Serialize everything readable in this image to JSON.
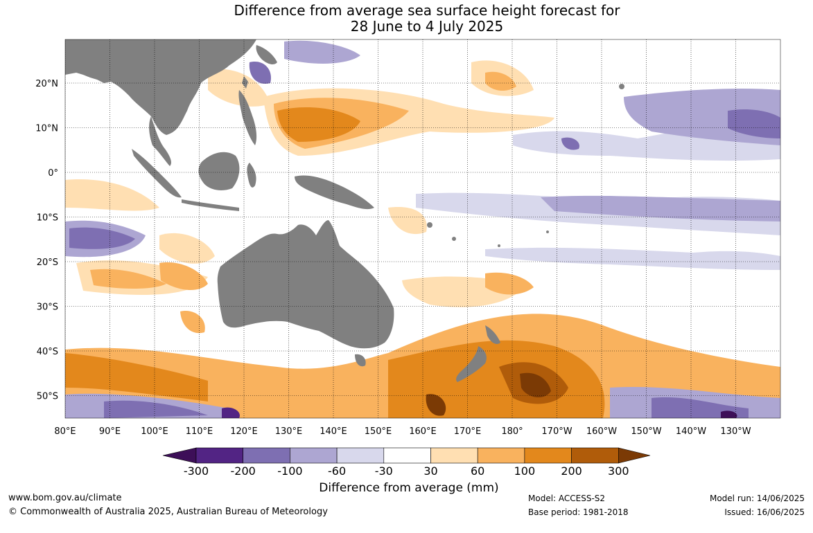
{
  "title": {
    "line1": "Difference from average sea surface height forecast for",
    "line2": "28 June to 4 July 2025"
  },
  "map": {
    "lon_labels": [
      "80°E",
      "90°E",
      "100°E",
      "110°E",
      "120°E",
      "130°E",
      "140°E",
      "150°E",
      "160°E",
      "170°E",
      "180°",
      "170°W",
      "160°W",
      "150°W",
      "140°W",
      "130°W"
    ],
    "lon_values": [
      80,
      90,
      100,
      110,
      120,
      130,
      140,
      150,
      160,
      170,
      180,
      190,
      200,
      210,
      220,
      230
    ],
    "lat_labels": [
      "20°N",
      "10°N",
      "0°",
      "10°S",
      "20°S",
      "30°S",
      "40°S",
      "50°S"
    ],
    "lat_values": [
      20,
      10,
      0,
      -10,
      -20,
      -30,
      -40,
      -50
    ],
    "lon_range": [
      80,
      240
    ],
    "lat_range": [
      -55,
      30
    ],
    "land_color": "#808080",
    "gridlines": "dotted"
  },
  "colorbar": {
    "title": "Difference from average (mm)",
    "ticks": [
      "-300",
      "-200",
      "-100",
      "-60",
      "-30",
      "30",
      "60",
      "100",
      "200",
      "300"
    ],
    "colors": [
      "#3d0f58",
      "#522484",
      "#7e6fb2",
      "#ada6d2",
      "#d8d8ec",
      "#ffffff",
      "#ffdfb2",
      "#f9b25e",
      "#e3881c",
      "#b05c0a",
      "#7b3a05"
    ]
  },
  "footer": {
    "website": "www.bom.gov.au/climate",
    "copyright": "© Commonwealth of Australia 2025, Australian Bureau of Meteorology",
    "model": "Model: ACCESS-S2",
    "base_period": "Base period: 1981-2018",
    "model_run": "Model run: 14/06/2025",
    "issued": "Issued: 16/06/2025"
  }
}
